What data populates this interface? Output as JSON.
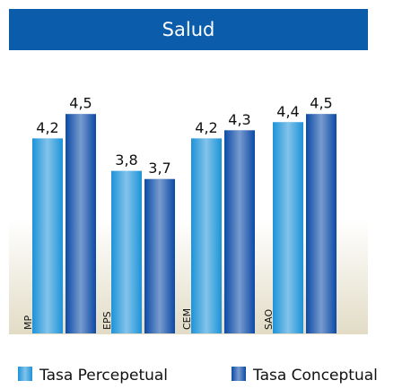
{
  "chart_data": {
    "type": "bar",
    "title": "Salud",
    "categories": [
      "MP",
      "EPS",
      "CEM",
      "SAO"
    ],
    "series": [
      {
        "name": "Tasa Percepetual",
        "color": "#1d93d8",
        "values": [
          4.2,
          3.8,
          4.2,
          4.4
        ],
        "value_labels": [
          "4,2",
          "3,8",
          "4,2",
          "4,4"
        ]
      },
      {
        "name": "Tasa Conceptual",
        "color": "#0b4aa6",
        "values": [
          4.5,
          3.7,
          4.3,
          4.5
        ],
        "value_labels": [
          "4,5",
          "3,7",
          "4,3",
          "4,5"
        ]
      }
    ],
    "ylim": [
      1.8,
      4.8
    ]
  }
}
